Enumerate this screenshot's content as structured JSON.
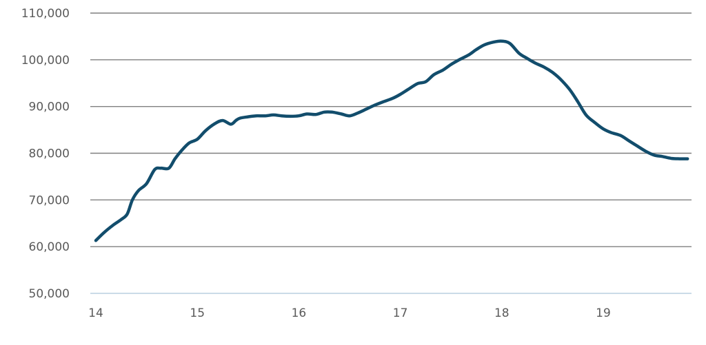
{
  "chart_data": {
    "type": "line",
    "title": "",
    "xlabel": "",
    "ylabel": "",
    "xlim": [
      14,
      19.85
    ],
    "ylim": [
      50000,
      110000
    ],
    "grid": true,
    "legend": "none",
    "x_ticks": [
      14,
      15,
      16,
      17,
      18,
      19
    ],
    "x_tick_labels": [
      "14",
      "15",
      "16",
      "17",
      "18",
      "19"
    ],
    "y_ticks": [
      50000,
      60000,
      70000,
      80000,
      90000,
      100000,
      110000
    ],
    "y_tick_labels": [
      "50,000",
      "60,000",
      "70,000",
      "80,000",
      "90,000",
      "100,000",
      "110,000"
    ],
    "colors": {
      "line": "#124d6c",
      "grid": "#7f7f7f",
      "baseline": "#b8cfe0",
      "text": "#5a5a5a"
    },
    "series": [
      {
        "x": [
          14.0,
          14.08,
          14.17,
          14.25,
          14.31,
          14.36,
          14.42,
          14.5,
          14.58,
          14.64,
          14.72,
          14.78,
          14.85,
          14.92,
          15.0,
          15.08,
          15.17,
          15.25,
          15.33,
          15.38,
          15.42,
          15.5,
          15.58,
          15.67,
          15.75,
          15.83,
          15.92,
          16.0,
          16.08,
          16.17,
          16.25,
          16.33,
          16.42,
          16.5,
          16.58,
          16.67,
          16.75,
          16.83,
          16.92,
          17.0,
          17.08,
          17.17,
          17.25,
          17.33,
          17.42,
          17.5,
          17.58,
          17.67,
          17.75,
          17.83,
          17.92,
          18.0,
          18.08,
          18.17,
          18.25,
          18.33,
          18.42,
          18.5,
          18.58,
          18.67,
          18.75,
          18.83,
          18.92,
          19.0,
          19.08,
          19.17,
          19.25,
          19.33,
          19.42,
          19.5,
          19.58,
          19.67,
          19.75,
          19.83
        ],
        "y": [
          61300,
          63000,
          64600,
          65800,
          67000,
          70000,
          72000,
          73500,
          76500,
          76800,
          76800,
          78800,
          80700,
          82200,
          83000,
          84800,
          86300,
          87000,
          86200,
          87000,
          87500,
          87800,
          88000,
          88000,
          88200,
          88000,
          87900,
          88000,
          88400,
          88300,
          88800,
          88800,
          88400,
          88000,
          88600,
          89500,
          90300,
          91000,
          91700,
          92600,
          93700,
          94900,
          95300,
          96800,
          97800,
          99000,
          100000,
          101000,
          102200,
          103200,
          103800,
          104000,
          103500,
          101400,
          100300,
          99300,
          98400,
          97300,
          95800,
          93600,
          91000,
          88200,
          86500,
          85200,
          84400,
          83800,
          82700,
          81600,
          80400,
          79600,
          79300,
          78900,
          78800,
          78800
        ]
      }
    ]
  }
}
